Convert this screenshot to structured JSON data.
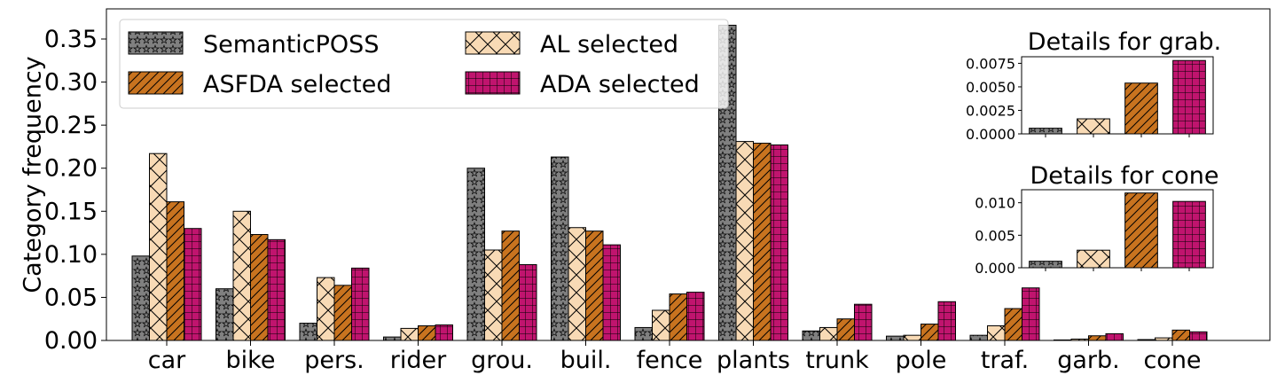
{
  "chart_data": {
    "type": "bar",
    "main": {
      "ylabel": "Category frequency",
      "categories": [
        "car",
        "bike",
        "pers.",
        "rider",
        "grou.",
        "buil.",
        "fence",
        "plants",
        "trunk",
        "pole",
        "traf.",
        "garb.",
        "cone"
      ],
      "ylim": [
        0,
        0.385
      ],
      "yticks": [
        "0.00",
        "0.05",
        "0.10",
        "0.15",
        "0.20",
        "0.25",
        "0.30",
        "0.35"
      ],
      "series": [
        {
          "name": "SemanticPOSS",
          "color": "#808080",
          "pattern": "stars",
          "values": [
            0.098,
            0.06,
            0.02,
            0.004,
            0.2,
            0.213,
            0.015,
            0.366,
            0.011,
            0.005,
            0.006,
            0.0006,
            0.001
          ]
        },
        {
          "name": "AL selected",
          "color": "#f8dab5",
          "pattern": "crosshatch",
          "values": [
            0.217,
            0.15,
            0.073,
            0.014,
            0.105,
            0.131,
            0.035,
            0.231,
            0.015,
            0.006,
            0.017,
            0.0016,
            0.003
          ]
        },
        {
          "name": "ASFDA selected",
          "color": "#c8731f",
          "pattern": "diagonal",
          "values": [
            0.161,
            0.123,
            0.064,
            0.017,
            0.127,
            0.127,
            0.054,
            0.229,
            0.025,
            0.019,
            0.037,
            0.0054,
            0.012
          ]
        },
        {
          "name": "ADA selected",
          "color": "#c0146e",
          "pattern": "grid",
          "values": [
            0.13,
            0.117,
            0.084,
            0.018,
            0.088,
            0.111,
            0.056,
            0.227,
            0.042,
            0.045,
            0.061,
            0.0078,
            0.01
          ]
        }
      ],
      "legend_placement": "top-left"
    },
    "insets": [
      {
        "title": "Details for grab.",
        "ylim": [
          0,
          0.0082
        ],
        "yticks": [
          "0.0000",
          "0.0025",
          "0.0050",
          "0.0075"
        ],
        "values": [
          0.0006,
          0.0016,
          0.0054,
          0.0078
        ]
      },
      {
        "title": "Details for cone",
        "ylim": [
          0,
          0.012
        ],
        "yticks": [
          "0.000",
          "0.005",
          "0.010"
        ],
        "values": [
          0.001,
          0.0027,
          0.0115,
          0.0102
        ]
      }
    ]
  }
}
